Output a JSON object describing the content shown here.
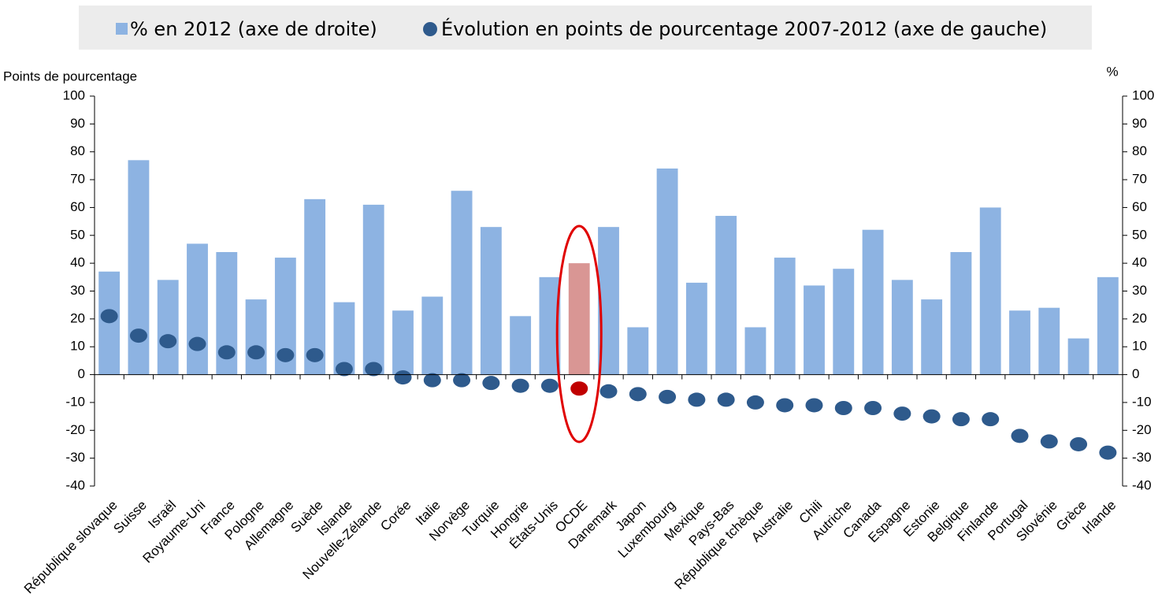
{
  "chart_data": {
    "type": "bar",
    "legend": "top",
    "y_label": "Points de pourcentage",
    "y2_label": "%",
    "categories": [
      "République slovaque",
      "Suisse",
      "Israël",
      "Royaume-Uni",
      "France",
      "Pologne",
      "Allemagne",
      "Suède",
      "Islande",
      "Nouvelle-Zélande",
      "Corée",
      "Italie",
      "Norvège",
      "Turquie",
      "Hongrie",
      "États-Unis",
      "OCDE",
      "Danemark",
      "Japon",
      "Luxembourg",
      "Mexique",
      "Pays-Bas",
      "République tchèque",
      "Australie",
      "Chili",
      "Autriche",
      "Canada",
      "Espagne",
      "Estonie",
      "Belgique",
      "Finlande",
      "Portugal",
      "Slovénie",
      "Grèce",
      "Irlande"
    ],
    "series": [
      {
        "name": "% en 2012 (axe de droite)",
        "type": "bar",
        "axis": "y2",
        "color": "#8db3e2",
        "values": [
          37,
          77,
          34,
          47,
          44,
          27,
          42,
          63,
          26,
          61,
          23,
          28,
          66,
          53,
          21,
          35,
          40,
          53,
          17,
          74,
          33,
          57,
          17,
          42,
          32,
          38,
          52,
          34,
          27,
          44,
          60,
          23,
          24,
          13,
          35
        ],
        "colors": [
          "#8db3e2",
          "#8db3e2",
          "#8db3e2",
          "#8db3e2",
          "#8db3e2",
          "#8db3e2",
          "#8db3e2",
          "#8db3e2",
          "#8db3e2",
          "#8db3e2",
          "#8db3e2",
          "#8db3e2",
          "#8db3e2",
          "#8db3e2",
          "#8db3e2",
          "#8db3e2",
          "#d99694",
          "#8db3e2",
          "#8db3e2",
          "#8db3e2",
          "#8db3e2",
          "#8db3e2",
          "#8db3e2",
          "#8db3e2",
          "#8db3e2",
          "#8db3e2",
          "#8db3e2",
          "#8db3e2",
          "#8db3e2",
          "#8db3e2",
          "#8db3e2",
          "#8db3e2",
          "#8db3e2",
          "#8db3e2",
          "#8db3e2"
        ]
      },
      {
        "name": "Évolution en points de pourcentage 2007-2012 (axe de gauche)",
        "type": "scatter",
        "color": "#2e5a8c",
        "values": [
          21,
          14,
          12,
          11,
          8,
          8,
          7,
          7,
          2,
          2,
          -1,
          -2,
          -2,
          -3,
          -4,
          -4,
          -5,
          -6,
          -7,
          -8,
          -9,
          -9,
          -10,
          -11,
          -11,
          -12,
          -12,
          -14,
          -15,
          -16,
          -16,
          -22,
          -24,
          -25,
          -28
        ],
        "colors": [
          "#2e5a8c",
          "#2e5a8c",
          "#2e5a8c",
          "#2e5a8c",
          "#2e5a8c",
          "#2e5a8c",
          "#2e5a8c",
          "#2e5a8c",
          "#2e5a8c",
          "#2e5a8c",
          "#2e5a8c",
          "#2e5a8c",
          "#2e5a8c",
          "#2e5a8c",
          "#2e5a8c",
          "#2e5a8c",
          "#c00000",
          "#2e5a8c",
          "#2e5a8c",
          "#2e5a8c",
          "#2e5a8c",
          "#2e5a8c",
          "#2e5a8c",
          "#2e5a8c",
          "#2e5a8c",
          "#2e5a8c",
          "#2e5a8c",
          "#2e5a8c",
          "#2e5a8c",
          "#2e5a8c",
          "#2e5a8c",
          "#2e5a8c",
          "#2e5a8c",
          "#2e5a8c",
          "#2e5a8c"
        ]
      }
    ],
    "ylim": [
      -40,
      100
    ],
    "yticks": [
      -40,
      -30,
      -20,
      -10,
      0,
      10,
      20,
      30,
      40,
      50,
      60,
      70,
      80,
      90,
      100
    ],
    "y2lim": [
      -40,
      100
    ],
    "y2ticks": [
      -40,
      -30,
      -20,
      -10,
      0,
      10,
      20,
      30,
      40,
      50,
      60,
      70,
      80,
      90,
      100
    ],
    "highlight_outline": "#e00000"
  }
}
